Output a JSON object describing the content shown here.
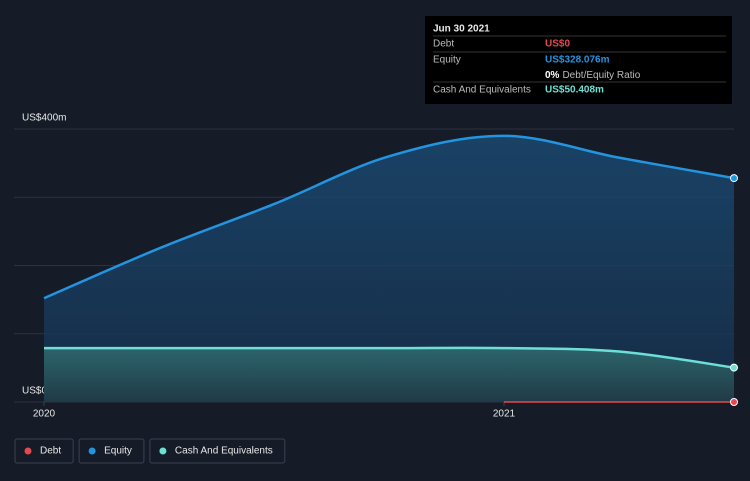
{
  "chart_data": {
    "type": "line",
    "x": [
      2020,
      2020.25,
      2020.5,
      2020.75,
      2021,
      2021.25,
      2021.5
    ],
    "xlim": [
      2020,
      2021.5
    ],
    "xticks": [
      2020,
      2021
    ],
    "ylim": [
      0,
      400
    ],
    "yticks": [
      {
        "value": 0,
        "label": "US$0"
      },
      {
        "value": 100,
        "label": null
      },
      {
        "value": 200,
        "label": null
      },
      {
        "value": 300,
        "label": null
      },
      {
        "value": 400,
        "label": "US$400m"
      }
    ],
    "grid": true,
    "series": [
      {
        "name": "Debt",
        "color": "#e8474f",
        "values": [
          null,
          null,
          null,
          null,
          0,
          0,
          0
        ]
      },
      {
        "name": "Equity",
        "color": "#2394df",
        "values": [
          152,
          225,
          290,
          360,
          390,
          358,
          328.076
        ]
      },
      {
        "name": "Cash And Equivalents",
        "color": "#6ce0d4",
        "values": [
          79,
          79,
          79,
          79,
          79,
          74,
          50.408
        ]
      }
    ],
    "tooltip": {
      "title": "Jun 30 2021",
      "rows": [
        {
          "label": "Debt",
          "value_label": "US$0"
        },
        {
          "label": "Equity",
          "value_label": "US$328.076m"
        },
        {
          "label": "Cash And Equivalents",
          "value_label": "US$50.408m"
        }
      ],
      "ratio_label": "0%",
      "ratio_text": "Debt/Equity Ratio"
    }
  }
}
